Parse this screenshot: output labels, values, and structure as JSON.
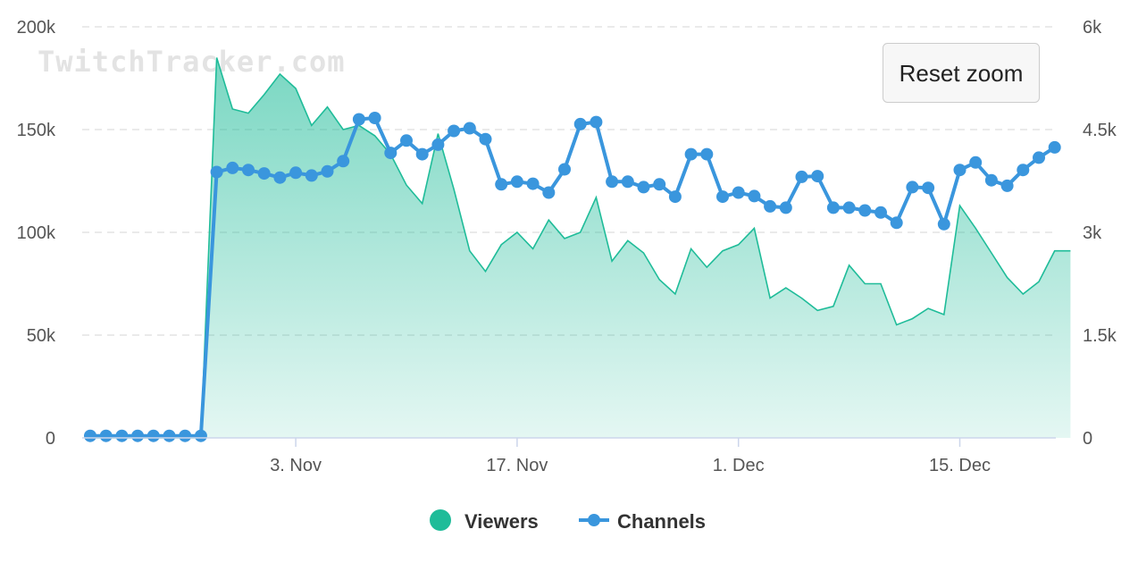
{
  "watermark": "TwitchTracker.com",
  "reset_zoom_label": "Reset zoom",
  "colors": {
    "viewers": "#1fbc99",
    "channels": "#3a96dd",
    "grid": "#dddddd"
  },
  "chart_data": {
    "type": "area",
    "x_ticks": [
      "3. Nov",
      "17. Nov",
      "1. Dec",
      "15. Dec"
    ],
    "y_left_ticks": [
      "0",
      "50k",
      "100k",
      "150k",
      "200k"
    ],
    "y_right_ticks": [
      "0",
      "1.5k",
      "3k",
      "4.5k",
      "6k"
    ],
    "y_left_range": [
      0,
      200000
    ],
    "y_right_range": [
      0,
      6000
    ],
    "grid": true,
    "legend_position": "bottom-center",
    "x_start_date": "2021-10-21",
    "series": [
      {
        "name": "Viewers",
        "type": "area",
        "axis": "left",
        "x": [
          "2021-10-21",
          "2021-10-22",
          "2021-10-23",
          "2021-10-24",
          "2021-10-25",
          "2021-10-26",
          "2021-10-27",
          "2021-10-28",
          "2021-10-29",
          "2021-10-30",
          "2021-10-31",
          "2021-11-01",
          "2021-11-02",
          "2021-11-03",
          "2021-11-04",
          "2021-11-05",
          "2021-11-06",
          "2021-11-07",
          "2021-11-08",
          "2021-11-09",
          "2021-11-10",
          "2021-11-11",
          "2021-11-12",
          "2021-11-13",
          "2021-11-14",
          "2021-11-15",
          "2021-11-16",
          "2021-11-17",
          "2021-11-18",
          "2021-11-19",
          "2021-11-20",
          "2021-11-21",
          "2021-11-22",
          "2021-11-23",
          "2021-11-24",
          "2021-11-25",
          "2021-11-26",
          "2021-11-27",
          "2021-11-28",
          "2021-11-29",
          "2021-11-30",
          "2021-12-01",
          "2021-12-02",
          "2021-12-03",
          "2021-12-04",
          "2021-12-05",
          "2021-12-06",
          "2021-12-07",
          "2021-12-08",
          "2021-12-09",
          "2021-12-10",
          "2021-12-11",
          "2021-12-12",
          "2021-12-13",
          "2021-12-14",
          "2021-12-15",
          "2021-12-16",
          "2021-12-17",
          "2021-12-18",
          "2021-12-19",
          "2021-12-20",
          "2021-12-21",
          "2021-12-22"
        ],
        "values": [
          0,
          0,
          0,
          0,
          0,
          0,
          0,
          0,
          185000,
          160000,
          158000,
          167000,
          177000,
          170000,
          152000,
          161000,
          150000,
          152000,
          147000,
          138000,
          123000,
          114000,
          148000,
          121000,
          91000,
          81000,
          94000,
          100000,
          92000,
          106000,
          97000,
          100000,
          117000,
          86000,
          96000,
          90000,
          77000,
          70000,
          92000,
          83000,
          91000,
          94000,
          102000,
          68000,
          73000,
          68000,
          62000,
          64000,
          84000,
          75000,
          75000,
          55000,
          58000,
          63000,
          60000,
          113000,
          102000,
          90000,
          78000,
          70000,
          76000,
          91000,
          91000
        ]
      },
      {
        "name": "Channels",
        "type": "line",
        "axis": "right",
        "x": [
          "2021-10-21",
          "2021-10-22",
          "2021-10-23",
          "2021-10-24",
          "2021-10-25",
          "2021-10-26",
          "2021-10-27",
          "2021-10-28",
          "2021-10-29",
          "2021-10-30",
          "2021-10-31",
          "2021-11-01",
          "2021-11-02",
          "2021-11-03",
          "2021-11-04",
          "2021-11-05",
          "2021-11-06",
          "2021-11-07",
          "2021-11-08",
          "2021-11-09",
          "2021-11-10",
          "2021-11-11",
          "2021-11-12",
          "2021-11-13",
          "2021-11-14",
          "2021-11-15",
          "2021-11-16",
          "2021-11-17",
          "2021-11-18",
          "2021-11-19",
          "2021-11-20",
          "2021-11-21",
          "2021-11-22",
          "2021-11-23",
          "2021-11-24",
          "2021-11-25",
          "2021-11-26",
          "2021-11-27",
          "2021-11-28",
          "2021-11-29",
          "2021-11-30",
          "2021-12-01",
          "2021-12-02",
          "2021-12-03",
          "2021-12-04",
          "2021-12-05",
          "2021-12-06",
          "2021-12-07",
          "2021-12-08",
          "2021-12-09",
          "2021-12-10",
          "2021-12-11",
          "2021-12-12",
          "2021-12-13",
          "2021-12-14",
          "2021-12-15",
          "2021-12-16",
          "2021-12-17",
          "2021-12-18",
          "2021-12-19",
          "2021-12-20",
          "2021-12-21"
        ],
        "values": [
          30,
          30,
          30,
          30,
          30,
          30,
          30,
          30,
          3880,
          3940,
          3910,
          3860,
          3800,
          3870,
          3830,
          3890,
          4040,
          4650,
          4670,
          4160,
          4340,
          4140,
          4280,
          4480,
          4520,
          4360,
          3700,
          3740,
          3710,
          3580,
          3920,
          4580,
          4610,
          3740,
          3740,
          3660,
          3700,
          3520,
          4140,
          4140,
          3520,
          3580,
          3530,
          3380,
          3360,
          3810,
          3820,
          3360,
          3360,
          3320,
          3290,
          3140,
          3660,
          3650,
          3120,
          3910,
          4020,
          3760,
          3680,
          3910,
          4090,
          4240
        ]
      }
    ]
  }
}
